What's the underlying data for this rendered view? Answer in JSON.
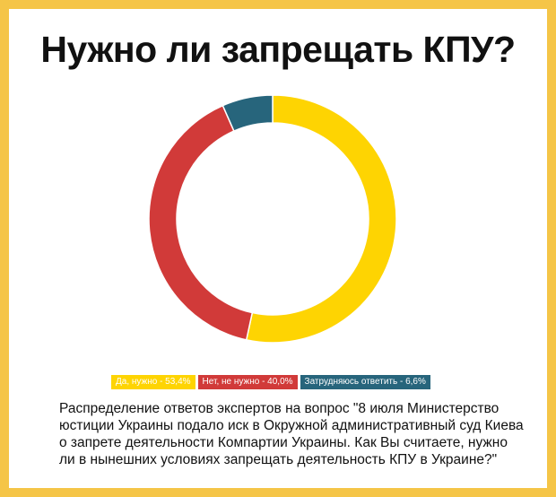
{
  "title": "Нужно ли запрещать КПУ?",
  "chart_data": {
    "type": "pie",
    "title": "Нужно ли запрещать КПУ?",
    "donut": true,
    "categories": [
      "Да, нужно",
      "Нет, не нужно",
      "Затрудняюсь ответить"
    ],
    "values": [
      53.4,
      40.0,
      6.6
    ],
    "unit": "%",
    "colors": [
      "#fed402",
      "#d13a39",
      "#27657c"
    ],
    "legend": "bottom",
    "legend_labels": [
      "Да, нужно - 53,4%",
      "Нет, не нужно - 40,0%",
      "Затрудняюсь ответить - 6,6%"
    ]
  },
  "caption_lines": [
    "Распределение ответов экспертов на вопрос \"8 июля Министерство",
    "юстиции Украины подало иск в Окружной административный суд Киева",
    "о запрете деятельности Компартии Украины. Как Вы считаете, нужно",
    "ли в нынешних условиях запрещать деятельность КПУ в Украине?\""
  ],
  "colors": {
    "frame": "#f5c547",
    "background": "#ffffff",
    "text": "#111111"
  }
}
